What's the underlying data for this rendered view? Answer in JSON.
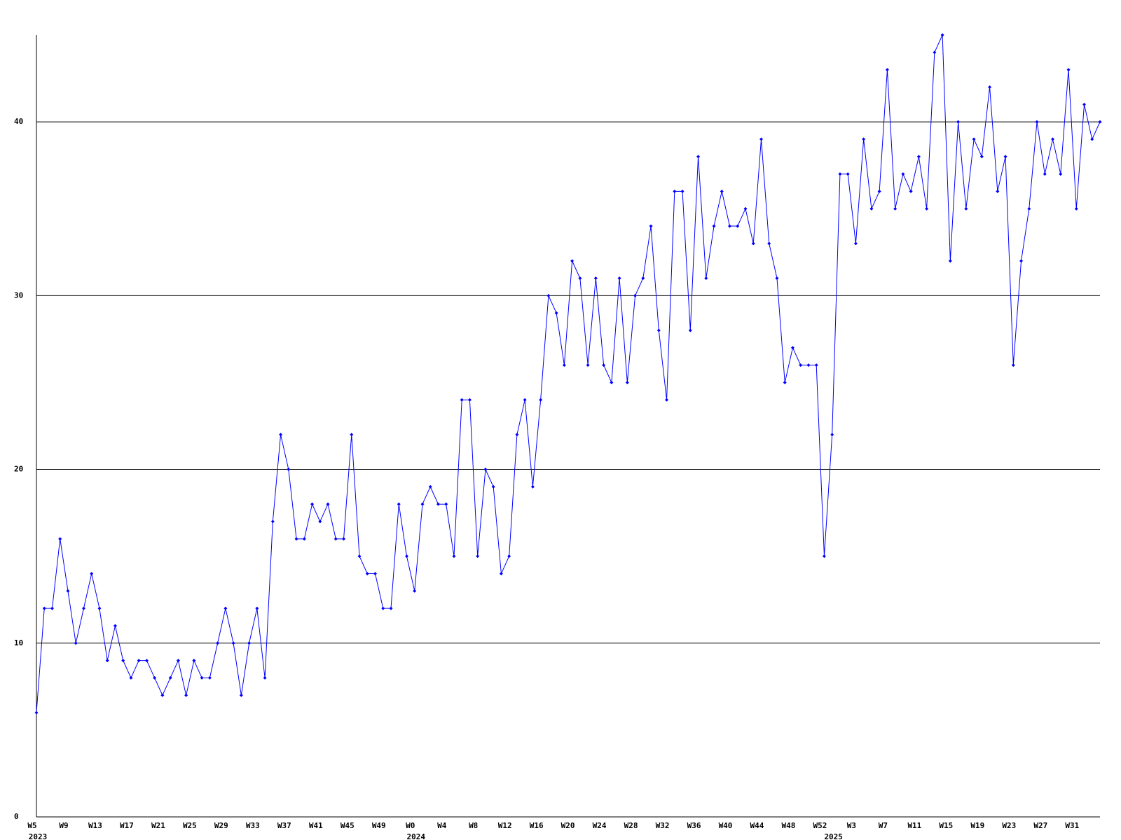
{
  "chart_data": {
    "type": "line",
    "color": "#0000ff",
    "grid": true,
    "ylim": [
      0,
      45
    ],
    "yticks": [
      0,
      10,
      20,
      30,
      40
    ],
    "categories": [
      "W5",
      null,
      null,
      null,
      "W9",
      null,
      null,
      null,
      "W13",
      null,
      null,
      null,
      "W17",
      null,
      null,
      null,
      "W21",
      null,
      null,
      null,
      "W25",
      null,
      null,
      null,
      "W29",
      null,
      null,
      null,
      "W33",
      null,
      null,
      null,
      "W37",
      null,
      null,
      null,
      "W41",
      null,
      null,
      null,
      "W45",
      null,
      null,
      null,
      "W49",
      null,
      null,
      null,
      "W0",
      null,
      null,
      null,
      "W4",
      null,
      null,
      null,
      "W8",
      null,
      null,
      null,
      "W12",
      null,
      null,
      null,
      "W16",
      null,
      null,
      null,
      "W20",
      null,
      null,
      null,
      "W24",
      null,
      null,
      null,
      "W28",
      null,
      null,
      null,
      "W32",
      null,
      null,
      null,
      "W36",
      null,
      null,
      null,
      "W40",
      null,
      null,
      null,
      "W44",
      null,
      null,
      null,
      "W48",
      null,
      null,
      null,
      "W52",
      null,
      null,
      null,
      "W3",
      null,
      null,
      null,
      "W7",
      null,
      null,
      null,
      "W11",
      null,
      null,
      null,
      "W15",
      null,
      null,
      null,
      "W19",
      null,
      null,
      null,
      "W23",
      null,
      null,
      null,
      "W27",
      null,
      null,
      null,
      "W31",
      null,
      null,
      null
    ],
    "year_labels": [
      "2023",
      null,
      null,
      null,
      null,
      null,
      null,
      null,
      null,
      null,
      null,
      null,
      null,
      null,
      null,
      null,
      null,
      null,
      null,
      null,
      null,
      null,
      null,
      null,
      null,
      null,
      null,
      null,
      null,
      null,
      null,
      null,
      null,
      null,
      null,
      null,
      null,
      null,
      null,
      null,
      null,
      null,
      null,
      null,
      null,
      null,
      null,
      null,
      "2024",
      null,
      null,
      null,
      null,
      null,
      null,
      null,
      null,
      null,
      null,
      null,
      null,
      null,
      null,
      null,
      null,
      null,
      null,
      null,
      null,
      null,
      null,
      null,
      null,
      null,
      null,
      null,
      null,
      null,
      null,
      null,
      null,
      null,
      null,
      null,
      null,
      null,
      null,
      null,
      null,
      null,
      null,
      null,
      null,
      null,
      null,
      null,
      null,
      null,
      null,
      null,
      null,
      "2025",
      null,
      null,
      null,
      null,
      null,
      null,
      null,
      null,
      null,
      null,
      null,
      null,
      null,
      null,
      null,
      null,
      null,
      null,
      null,
      null,
      null,
      null,
      null,
      null,
      null,
      null,
      null,
      null,
      null,
      null,
      null,
      null,
      null,
      null
    ],
    "values": [
      6,
      12,
      12,
      16,
      13,
      10,
      12,
      14,
      12,
      9,
      11,
      9,
      8,
      9,
      9,
      8,
      7,
      8,
      9,
      7,
      9,
      8,
      8,
      10,
      12,
      10,
      7,
      10,
      12,
      8,
      17,
      22,
      20,
      16,
      16,
      18,
      17,
      18,
      16,
      16,
      22,
      15,
      14,
      14,
      12,
      12,
      18,
      15,
      13,
      18,
      19,
      18,
      18,
      15,
      24,
      24,
      15,
      20,
      19,
      14,
      15,
      22,
      24,
      19,
      24,
      30,
      29,
      26,
      32,
      31,
      26,
      31,
      26,
      25,
      31,
      25,
      30,
      31,
      34,
      28,
      24,
      36,
      36,
      28,
      38,
      31,
      34,
      36,
      34,
      34,
      35,
      33,
      39,
      33,
      31,
      25,
      27,
      26,
      26,
      26,
      15,
      22,
      37,
      37,
      33,
      39,
      35,
      36,
      43,
      35,
      37,
      36,
      38,
      35,
      44,
      45,
      32,
      40,
      35,
      39,
      38,
      42,
      36,
      38,
      26,
      32,
      35,
      40,
      37,
      39,
      37,
      43,
      35,
      41,
      39,
      40
    ]
  }
}
